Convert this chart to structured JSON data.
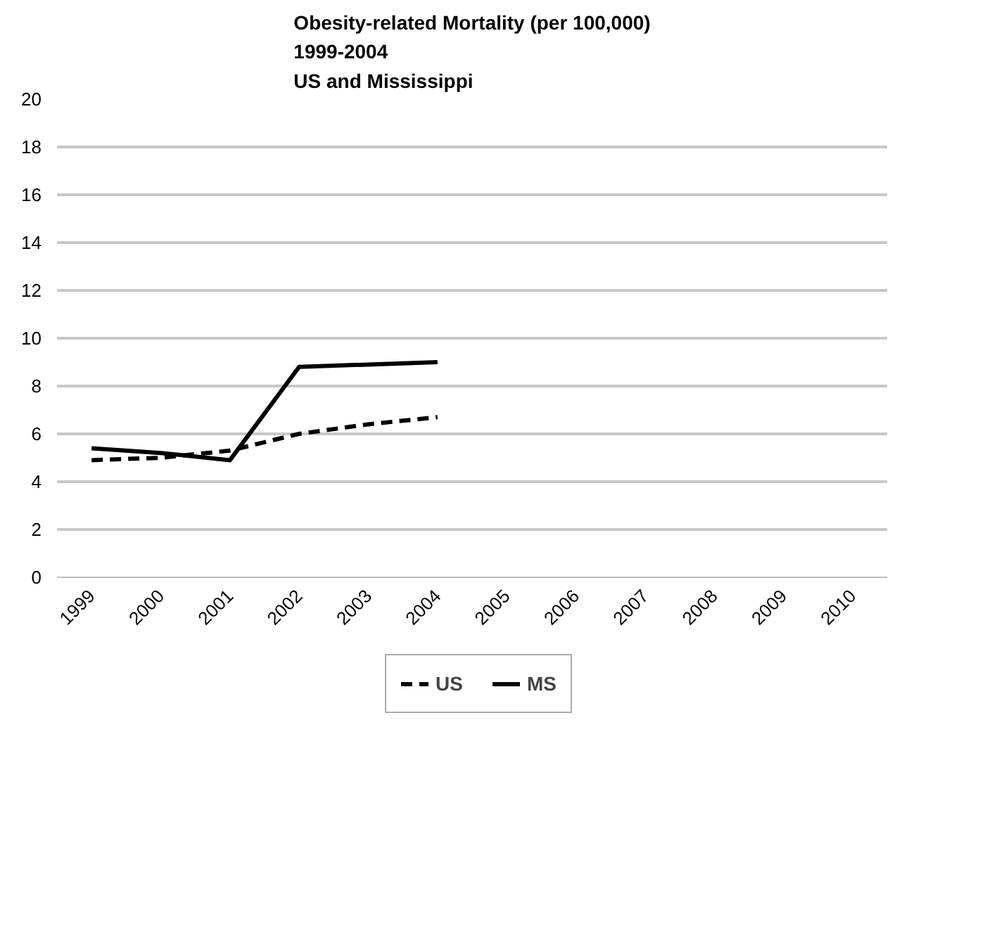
{
  "chart_data": {
    "type": "line",
    "title": "Obesity-related Mortality (per 100,000)\n1999-2004\nUS and Mississippi",
    "categories": [
      "1999",
      "2000",
      "2001",
      "2002",
      "2003",
      "2004",
      "2005",
      "2006",
      "2007",
      "2008",
      "2009",
      "2010"
    ],
    "series": [
      {
        "name": "US",
        "color": "#000000",
        "line_style": "dashed",
        "values": [
          4.9,
          5.0,
          5.3,
          6.0,
          6.4,
          6.7,
          null,
          null,
          null,
          null,
          null,
          null
        ]
      },
      {
        "name": "MS",
        "color": "#000000",
        "line_style": "solid",
        "values": [
          5.4,
          5.2,
          4.9,
          8.8,
          8.9,
          9.0,
          null,
          null,
          null,
          null,
          null,
          null
        ]
      }
    ],
    "ylim": [
      0,
      20
    ],
    "yticks": [
      0,
      2,
      4,
      6,
      8,
      10,
      12,
      14,
      16,
      18,
      20
    ],
    "grid": "y",
    "legend": "bottom",
    "marker": "none"
  }
}
